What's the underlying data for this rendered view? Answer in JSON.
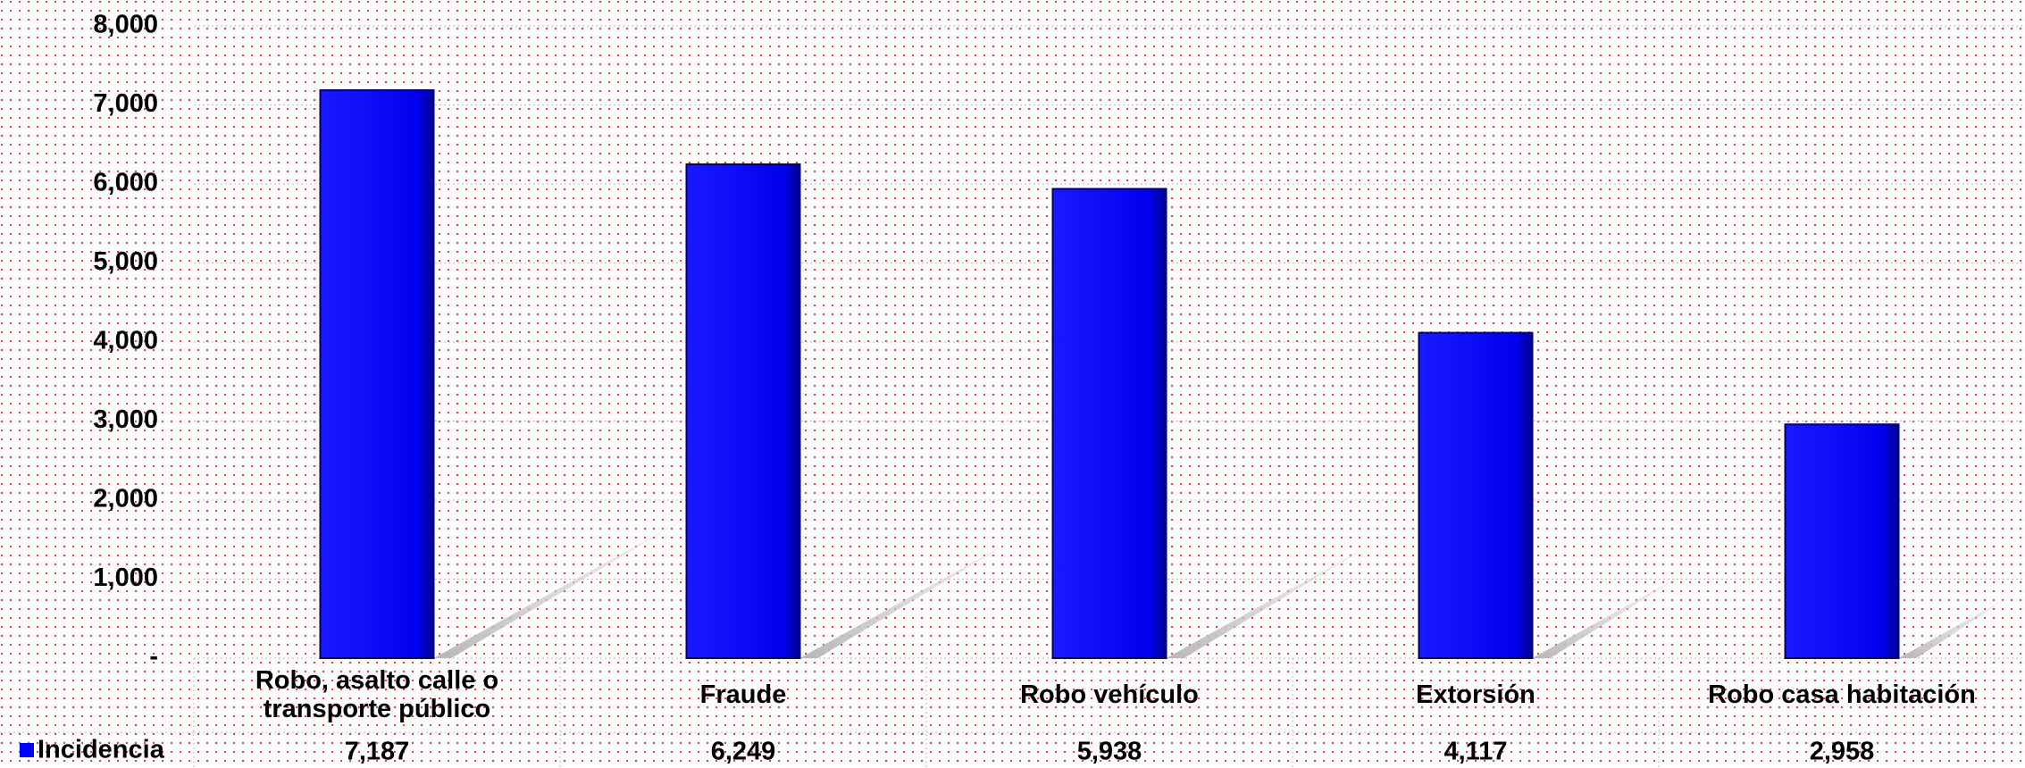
{
  "chart_data": {
    "type": "bar",
    "categories": [
      "Robo, asalto calle o transporte público",
      "Fraude",
      "Robo vehículo",
      "Extorsión",
      "Robo casa habitación"
    ],
    "series": [
      {
        "name": "Incidencia",
        "color": "#0000ff",
        "values": [
          7187,
          6249,
          5938,
          4117,
          2958
        ],
        "value_labels": [
          "7,187",
          "6,249",
          "5,938",
          "4,117",
          "2,958"
        ]
      }
    ],
    "ylim": [
      0,
      8000
    ],
    "yticks": [
      {
        "value": 0,
        "label": "-"
      },
      {
        "value": 1000,
        "label": "1,000"
      },
      {
        "value": 2000,
        "label": "2,000"
      },
      {
        "value": 3000,
        "label": "3,000"
      },
      {
        "value": 4000,
        "label": "4,000"
      },
      {
        "value": 5000,
        "label": "5,000"
      },
      {
        "value": 6000,
        "label": "6,000"
      },
      {
        "value": 7000,
        "label": "7,000"
      },
      {
        "value": 8000,
        "label": "8,000"
      }
    ],
    "grid": true
  }
}
